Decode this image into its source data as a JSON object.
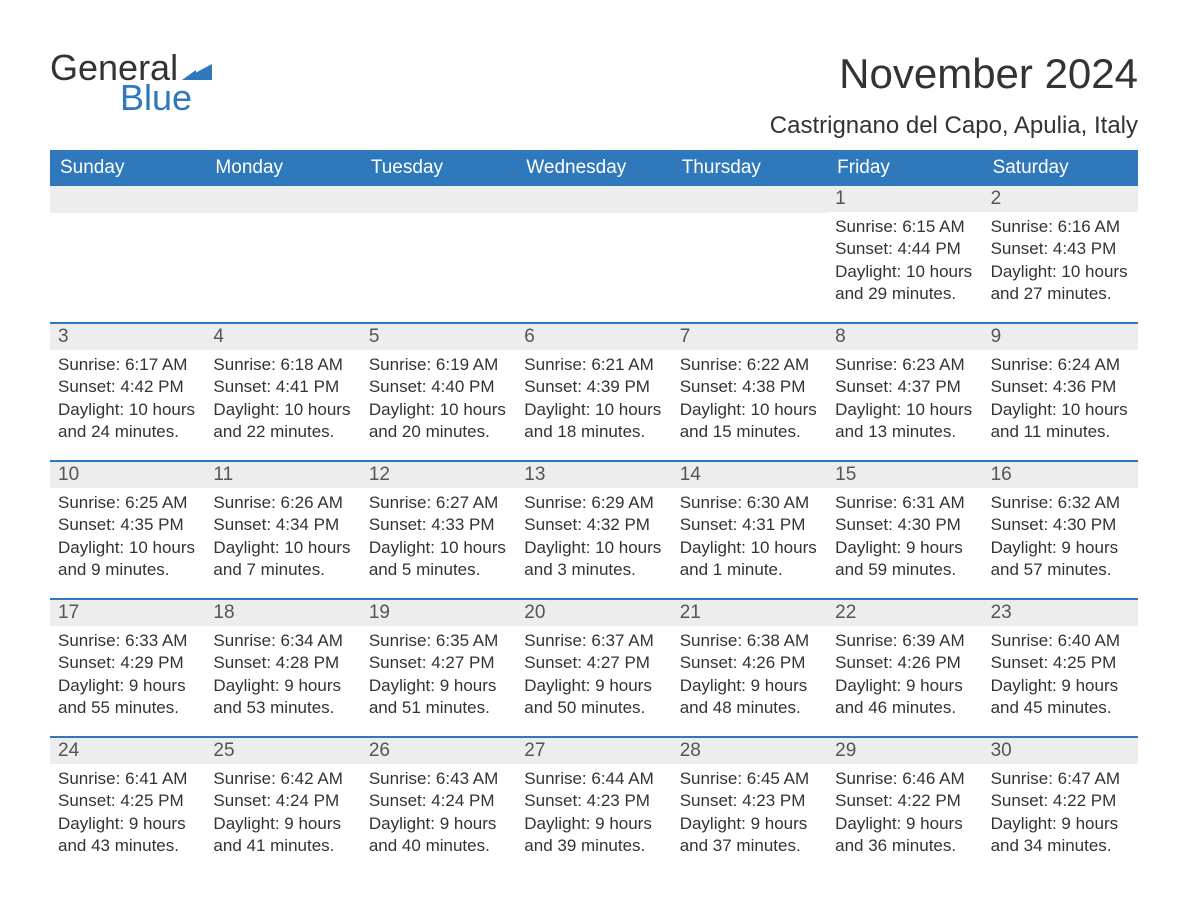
{
  "logo": {
    "word1": "General",
    "word2": "Blue",
    "color_general": "#333333",
    "color_blue": "#2f78bc",
    "triangle_color": "#2f78bc"
  },
  "title": "November 2024",
  "location": "Castrignano del Capo, Apulia, Italy",
  "colors": {
    "header_bg": "#2f78bc",
    "header_text": "#ffffff",
    "daynum_bg": "#ededed",
    "daynum_text": "#555555",
    "body_text": "#333333",
    "rule": "#2f78bc",
    "page_bg": "#ffffff"
  },
  "typography": {
    "title_fontsize": 42,
    "location_fontsize": 24,
    "weekday_fontsize": 19,
    "daynum_fontsize": 19,
    "body_fontsize": 17,
    "font_family": "Arial"
  },
  "weekdays": [
    "Sunday",
    "Monday",
    "Tuesday",
    "Wednesday",
    "Thursday",
    "Friday",
    "Saturday"
  ],
  "weeks": [
    [
      null,
      null,
      null,
      null,
      null,
      {
        "day": "1",
        "sunrise": "Sunrise: 6:15 AM",
        "sunset": "Sunset: 4:44 PM",
        "daylight1": "Daylight: 10 hours",
        "daylight2": "and 29 minutes."
      },
      {
        "day": "2",
        "sunrise": "Sunrise: 6:16 AM",
        "sunset": "Sunset: 4:43 PM",
        "daylight1": "Daylight: 10 hours",
        "daylight2": "and 27 minutes."
      }
    ],
    [
      {
        "day": "3",
        "sunrise": "Sunrise: 6:17 AM",
        "sunset": "Sunset: 4:42 PM",
        "daylight1": "Daylight: 10 hours",
        "daylight2": "and 24 minutes."
      },
      {
        "day": "4",
        "sunrise": "Sunrise: 6:18 AM",
        "sunset": "Sunset: 4:41 PM",
        "daylight1": "Daylight: 10 hours",
        "daylight2": "and 22 minutes."
      },
      {
        "day": "5",
        "sunrise": "Sunrise: 6:19 AM",
        "sunset": "Sunset: 4:40 PM",
        "daylight1": "Daylight: 10 hours",
        "daylight2": "and 20 minutes."
      },
      {
        "day": "6",
        "sunrise": "Sunrise: 6:21 AM",
        "sunset": "Sunset: 4:39 PM",
        "daylight1": "Daylight: 10 hours",
        "daylight2": "and 18 minutes."
      },
      {
        "day": "7",
        "sunrise": "Sunrise: 6:22 AM",
        "sunset": "Sunset: 4:38 PM",
        "daylight1": "Daylight: 10 hours",
        "daylight2": "and 15 minutes."
      },
      {
        "day": "8",
        "sunrise": "Sunrise: 6:23 AM",
        "sunset": "Sunset: 4:37 PM",
        "daylight1": "Daylight: 10 hours",
        "daylight2": "and 13 minutes."
      },
      {
        "day": "9",
        "sunrise": "Sunrise: 6:24 AM",
        "sunset": "Sunset: 4:36 PM",
        "daylight1": "Daylight: 10 hours",
        "daylight2": "and 11 minutes."
      }
    ],
    [
      {
        "day": "10",
        "sunrise": "Sunrise: 6:25 AM",
        "sunset": "Sunset: 4:35 PM",
        "daylight1": "Daylight: 10 hours",
        "daylight2": "and 9 minutes."
      },
      {
        "day": "11",
        "sunrise": "Sunrise: 6:26 AM",
        "sunset": "Sunset: 4:34 PM",
        "daylight1": "Daylight: 10 hours",
        "daylight2": "and 7 minutes."
      },
      {
        "day": "12",
        "sunrise": "Sunrise: 6:27 AM",
        "sunset": "Sunset: 4:33 PM",
        "daylight1": "Daylight: 10 hours",
        "daylight2": "and 5 minutes."
      },
      {
        "day": "13",
        "sunrise": "Sunrise: 6:29 AM",
        "sunset": "Sunset: 4:32 PM",
        "daylight1": "Daylight: 10 hours",
        "daylight2": "and 3 minutes."
      },
      {
        "day": "14",
        "sunrise": "Sunrise: 6:30 AM",
        "sunset": "Sunset: 4:31 PM",
        "daylight1": "Daylight: 10 hours",
        "daylight2": "and 1 minute."
      },
      {
        "day": "15",
        "sunrise": "Sunrise: 6:31 AM",
        "sunset": "Sunset: 4:30 PM",
        "daylight1": "Daylight: 9 hours",
        "daylight2": "and 59 minutes."
      },
      {
        "day": "16",
        "sunrise": "Sunrise: 6:32 AM",
        "sunset": "Sunset: 4:30 PM",
        "daylight1": "Daylight: 9 hours",
        "daylight2": "and 57 minutes."
      }
    ],
    [
      {
        "day": "17",
        "sunrise": "Sunrise: 6:33 AM",
        "sunset": "Sunset: 4:29 PM",
        "daylight1": "Daylight: 9 hours",
        "daylight2": "and 55 minutes."
      },
      {
        "day": "18",
        "sunrise": "Sunrise: 6:34 AM",
        "sunset": "Sunset: 4:28 PM",
        "daylight1": "Daylight: 9 hours",
        "daylight2": "and 53 minutes."
      },
      {
        "day": "19",
        "sunrise": "Sunrise: 6:35 AM",
        "sunset": "Sunset: 4:27 PM",
        "daylight1": "Daylight: 9 hours",
        "daylight2": "and 51 minutes."
      },
      {
        "day": "20",
        "sunrise": "Sunrise: 6:37 AM",
        "sunset": "Sunset: 4:27 PM",
        "daylight1": "Daylight: 9 hours",
        "daylight2": "and 50 minutes."
      },
      {
        "day": "21",
        "sunrise": "Sunrise: 6:38 AM",
        "sunset": "Sunset: 4:26 PM",
        "daylight1": "Daylight: 9 hours",
        "daylight2": "and 48 minutes."
      },
      {
        "day": "22",
        "sunrise": "Sunrise: 6:39 AM",
        "sunset": "Sunset: 4:26 PM",
        "daylight1": "Daylight: 9 hours",
        "daylight2": "and 46 minutes."
      },
      {
        "day": "23",
        "sunrise": "Sunrise: 6:40 AM",
        "sunset": "Sunset: 4:25 PM",
        "daylight1": "Daylight: 9 hours",
        "daylight2": "and 45 minutes."
      }
    ],
    [
      {
        "day": "24",
        "sunrise": "Sunrise: 6:41 AM",
        "sunset": "Sunset: 4:25 PM",
        "daylight1": "Daylight: 9 hours",
        "daylight2": "and 43 minutes."
      },
      {
        "day": "25",
        "sunrise": "Sunrise: 6:42 AM",
        "sunset": "Sunset: 4:24 PM",
        "daylight1": "Daylight: 9 hours",
        "daylight2": "and 41 minutes."
      },
      {
        "day": "26",
        "sunrise": "Sunrise: 6:43 AM",
        "sunset": "Sunset: 4:24 PM",
        "daylight1": "Daylight: 9 hours",
        "daylight2": "and 40 minutes."
      },
      {
        "day": "27",
        "sunrise": "Sunrise: 6:44 AM",
        "sunset": "Sunset: 4:23 PM",
        "daylight1": "Daylight: 9 hours",
        "daylight2": "and 39 minutes."
      },
      {
        "day": "28",
        "sunrise": "Sunrise: 6:45 AM",
        "sunset": "Sunset: 4:23 PM",
        "daylight1": "Daylight: 9 hours",
        "daylight2": "and 37 minutes."
      },
      {
        "day": "29",
        "sunrise": "Sunrise: 6:46 AM",
        "sunset": "Sunset: 4:22 PM",
        "daylight1": "Daylight: 9 hours",
        "daylight2": "and 36 minutes."
      },
      {
        "day": "30",
        "sunrise": "Sunrise: 6:47 AM",
        "sunset": "Sunset: 4:22 PM",
        "daylight1": "Daylight: 9 hours",
        "daylight2": "and 34 minutes."
      }
    ]
  ]
}
